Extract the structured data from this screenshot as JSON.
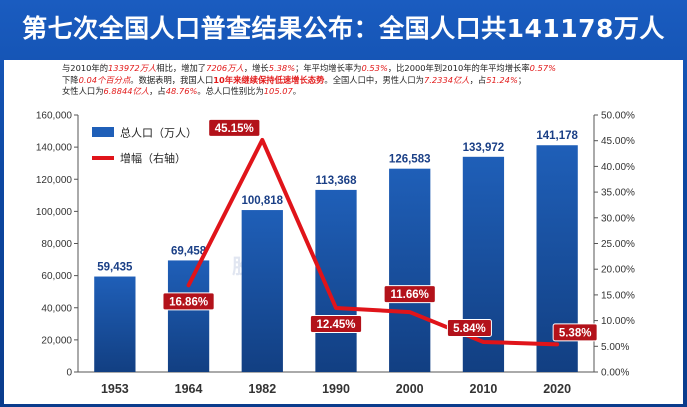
{
  "title": "第七次全国人口普查结果公布：全国人口共141178万人",
  "description": {
    "line1": [
      {
        "t": "与2010年的",
        "s": ""
      },
      {
        "t": "133972万人",
        "s": "hl"
      },
      {
        "t": "相比，增加了",
        "s": ""
      },
      {
        "t": "7206万人",
        "s": "hl"
      },
      {
        "t": "，增长",
        "s": ""
      },
      {
        "t": "5.38%",
        "s": "hl"
      },
      {
        "t": "；年平均增长率为",
        "s": ""
      },
      {
        "t": "0.53%",
        "s": "hl"
      },
      {
        "t": "，比2000年到2010年的年平均增长率",
        "s": ""
      },
      {
        "t": "0.57%",
        "s": "hl"
      }
    ],
    "line2": [
      {
        "t": "下降",
        "s": ""
      },
      {
        "t": "0.04个百分点",
        "s": "hl"
      },
      {
        "t": "。数据表明，我国人口",
        "s": ""
      },
      {
        "t": "10年来继续保持低速增长态势",
        "s": "hlb"
      },
      {
        "t": "。全国人口中，男性人口为",
        "s": ""
      },
      {
        "t": "7.2334亿人",
        "s": "hl"
      },
      {
        "t": "，占",
        "s": ""
      },
      {
        "t": "51.24%",
        "s": "hl"
      },
      {
        "t": "；",
        "s": ""
      }
    ],
    "line3": [
      {
        "t": "女性人口为",
        "s": ""
      },
      {
        "t": "6.8844亿人",
        "s": "hl"
      },
      {
        "t": "，占",
        "s": ""
      },
      {
        "t": "48.76%",
        "s": "hl"
      },
      {
        "t": "。总人口性别比为",
        "s": ""
      },
      {
        "t": "105.07",
        "s": "hl"
      },
      {
        "t": "。",
        "s": ""
      }
    ]
  },
  "watermark": "股 据",
  "colors": {
    "bar": "#1f5fb8",
    "bar_dark": "#123f82",
    "line": "#e0141a",
    "label_bg": "#b3121a",
    "title_bg": "#1558b8"
  },
  "chart_data": {
    "type": "bar",
    "categories": [
      "1953",
      "1964",
      "1982",
      "1990",
      "2000",
      "2010",
      "2020"
    ],
    "series": [
      {
        "name": "总人口（万人）",
        "type": "bar",
        "axis": "left",
        "values": [
          59435,
          69458,
          100818,
          113368,
          126583,
          133972,
          141178
        ],
        "labels": [
          "59,435",
          "69,458",
          "100,818",
          "113,368",
          "126,583",
          "133,972",
          "141,178"
        ]
      },
      {
        "name": "增幅（右轴）",
        "type": "line",
        "axis": "right",
        "values": [
          null,
          16.86,
          45.15,
          12.45,
          11.66,
          5.84,
          5.38
        ],
        "labels": [
          "",
          "16.86%",
          "45.15%",
          "12.45%",
          "11.66%",
          "5.84%",
          "5.38%"
        ]
      }
    ],
    "y_left": {
      "min": 0,
      "max": 160000,
      "step": 20000,
      "ticks": [
        "0",
        "20,000",
        "40,000",
        "60,000",
        "80,000",
        "100,000",
        "120,000",
        "140,000",
        "160,000"
      ]
    },
    "y_right": {
      "min": 0,
      "max": 50,
      "step": 5,
      "ticks": [
        "0.00%",
        "5.00%",
        "10.00%",
        "15.00%",
        "20.00%",
        "25.00%",
        "30.00%",
        "35.00%",
        "40.00%",
        "45.00%",
        "50.00%"
      ]
    },
    "legend_position": "top-left"
  }
}
